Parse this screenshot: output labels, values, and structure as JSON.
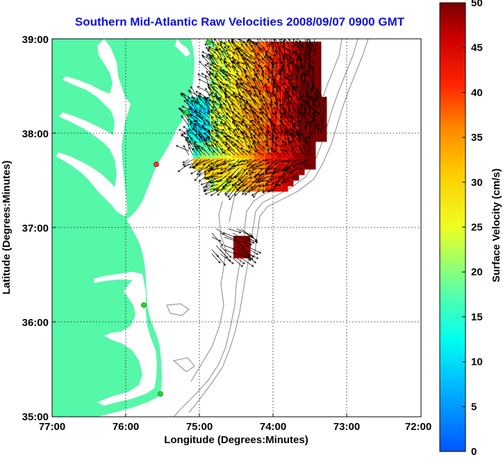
{
  "title": "Southern Mid-Atlantic Raw Velocities 2008/09/07 0900 GMT",
  "xlabel": "Longitude (Degrees:Minutes)",
  "ylabel": "Latitude (Degrees:Minutes)",
  "x_ticks": [
    "77:00",
    "76:00",
    "75:00",
    "74:00",
    "73:00",
    "72:00"
  ],
  "y_ticks": [
    "39:00",
    "38:00",
    "37:00",
    "36:00",
    "35:00"
  ],
  "colorbar": {
    "label": "Surface Velocity (cm/s)",
    "ticks": [
      "50",
      "45",
      "40",
      "35",
      "30",
      "25",
      "20",
      "15",
      "10",
      "5",
      "0"
    ],
    "min": 0,
    "max": 50
  },
  "colors": {
    "land": "#55f7a8",
    "title": "#1010e0",
    "station": "#22dd22",
    "station_alt": "#ee3322",
    "bathymetry": "#999999"
  },
  "chart_data": {
    "type": "heatmap",
    "xlim": [
      "77:00",
      "72:00"
    ],
    "ylim": [
      "35:00",
      "39:00"
    ],
    "grid": true,
    "colorbar_range": [
      0,
      50
    ],
    "units": "cm/s"
  }
}
